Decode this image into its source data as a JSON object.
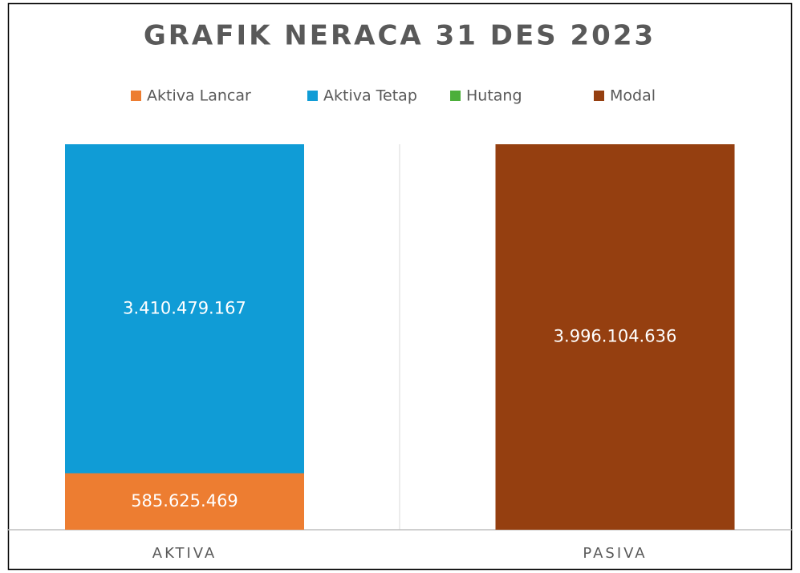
{
  "chart_data": {
    "type": "stacked_bar",
    "title": "GRAFIK NERACA 31 DES 2023",
    "categories": [
      "AKTIVA",
      "PASIVA"
    ],
    "series": [
      {
        "name": "Aktiva Lancar",
        "color": "#ed7d31",
        "values": [
          585625469,
          null
        ],
        "value_labels": [
          "585.625.469",
          null
        ]
      },
      {
        "name": "Aktiva Tetap",
        "color": "#109cd6",
        "values": [
          3410479167,
          null
        ],
        "value_labels": [
          "3.410.479.167",
          null
        ]
      },
      {
        "name": "Hutang",
        "color": "#4caf3a",
        "values": [
          null,
          0
        ],
        "value_labels": [
          null,
          null
        ]
      },
      {
        "name": "Modal",
        "color": "#953f10",
        "values": [
          null,
          3996104636
        ],
        "value_labels": [
          null,
          "3.996.104.636"
        ]
      }
    ],
    "ylim": [
      0,
      3996104636
    ],
    "legend": "top"
  }
}
